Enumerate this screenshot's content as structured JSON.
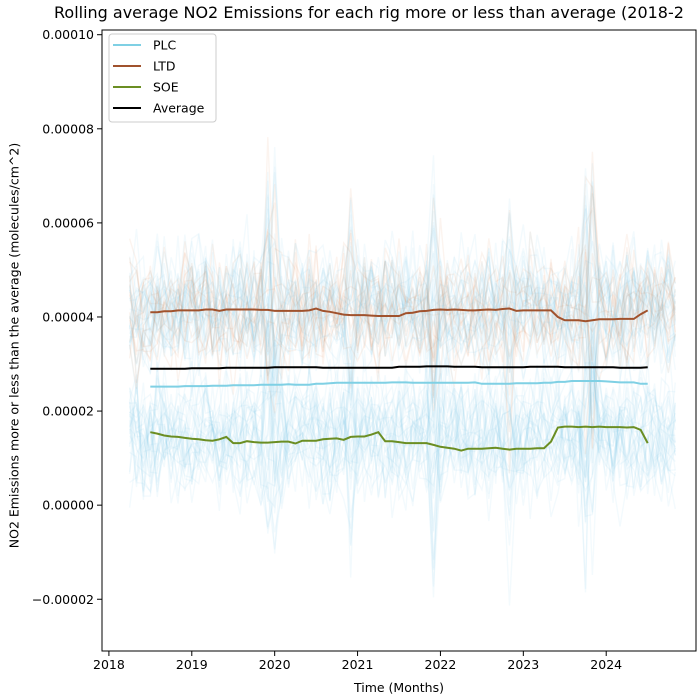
{
  "chart_data": {
    "type": "line",
    "title": "Rolling average NO2 Emissions for each rig more or less than average (2018-2",
    "xlabel": "Time (Months)",
    "ylabel": "NO2 Emissions more or less than the average (molecules/cm^2)",
    "xlim": [
      "2017-12",
      "2025-02"
    ],
    "ylim": [
      -3.1e-05,
      0.000101
    ],
    "x_ticks": [
      "2018",
      "2019",
      "2020",
      "2021",
      "2022",
      "2023",
      "2024"
    ],
    "y_ticks": [
      "−0.00002",
      "0.00000",
      "0.00002",
      "0.00004",
      "0.00006",
      "0.00008",
      "0.00010"
    ],
    "y_tick_values": [
      -2e-05,
      0,
      2e-05,
      4e-05,
      6e-05,
      8e-05,
      0.0001
    ],
    "grid": false,
    "legend_position": "top-left",
    "x": [
      "2018-07",
      "2018-08",
      "2018-09",
      "2018-10",
      "2018-11",
      "2018-12",
      "2019-01",
      "2019-02",
      "2019-03",
      "2019-04",
      "2019-05",
      "2019-06",
      "2019-07",
      "2019-08",
      "2019-09",
      "2019-10",
      "2019-11",
      "2019-12",
      "2020-01",
      "2020-02",
      "2020-03",
      "2020-04",
      "2020-05",
      "2020-06",
      "2020-07",
      "2020-08",
      "2020-09",
      "2020-10",
      "2020-11",
      "2020-12",
      "2021-01",
      "2021-02",
      "2021-03",
      "2021-04",
      "2021-05",
      "2021-06",
      "2021-07",
      "2021-08",
      "2021-09",
      "2021-10",
      "2021-11",
      "2021-12",
      "2022-01",
      "2022-02",
      "2022-03",
      "2022-04",
      "2022-05",
      "2022-06",
      "2022-07",
      "2022-08",
      "2022-09",
      "2022-10",
      "2022-11",
      "2022-12",
      "2023-01",
      "2023-02",
      "2023-03",
      "2023-04",
      "2023-05",
      "2023-06",
      "2023-07",
      "2023-08",
      "2023-09",
      "2023-10",
      "2023-11",
      "2023-12",
      "2024-01",
      "2024-02",
      "2024-03",
      "2024-04",
      "2024-05",
      "2024-06",
      "2024-07"
    ],
    "series": [
      {
        "name": "PLC",
        "color": "#7fd0e4",
        "values": [
          2.52e-05,
          2.52e-05,
          2.52e-05,
          2.52e-05,
          2.52e-05,
          2.53e-05,
          2.53e-05,
          2.53e-05,
          2.53e-05,
          2.54e-05,
          2.54e-05,
          2.54e-05,
          2.55e-05,
          2.55e-05,
          2.55e-05,
          2.55e-05,
          2.56e-05,
          2.56e-05,
          2.56e-05,
          2.56e-05,
          2.57e-05,
          2.56e-05,
          2.56e-05,
          2.56e-05,
          2.58e-05,
          2.58e-05,
          2.59e-05,
          2.6e-05,
          2.6e-05,
          2.6e-05,
          2.6e-05,
          2.6e-05,
          2.6e-05,
          2.6e-05,
          2.6e-05,
          2.61e-05,
          2.61e-05,
          2.61e-05,
          2.6e-05,
          2.6e-05,
          2.6e-05,
          2.6e-05,
          2.6e-05,
          2.6e-05,
          2.6e-05,
          2.6e-05,
          2.6e-05,
          2.61e-05,
          2.58e-05,
          2.58e-05,
          2.58e-05,
          2.58e-05,
          2.58e-05,
          2.59e-05,
          2.59e-05,
          2.59e-05,
          2.59e-05,
          2.6e-05,
          2.6e-05,
          2.62e-05,
          2.62e-05,
          2.64e-05,
          2.64e-05,
          2.64e-05,
          2.64e-05,
          2.64e-05,
          2.63e-05,
          2.62e-05,
          2.61e-05,
          2.61e-05,
          2.61e-05,
          2.58e-05,
          2.58e-05
        ]
      },
      {
        "name": "LTD",
        "color": "#a0522d",
        "values": [
          4.1e-05,
          4.1e-05,
          4.12e-05,
          4.12e-05,
          4.14e-05,
          4.14e-05,
          4.14e-05,
          4.14e-05,
          4.16e-05,
          4.16e-05,
          4.13e-05,
          4.16e-05,
          4.16e-05,
          4.16e-05,
          4.16e-05,
          4.16e-05,
          4.15e-05,
          4.15e-05,
          4.13e-05,
          4.13e-05,
          4.13e-05,
          4.13e-05,
          4.13e-05,
          4.14e-05,
          4.18e-05,
          4.13e-05,
          4.11e-05,
          4.08e-05,
          4.05e-05,
          4.04e-05,
          4.04e-05,
          4.04e-05,
          4.03e-05,
          4.02e-05,
          4.02e-05,
          4.02e-05,
          4.02e-05,
          4.08e-05,
          4.09e-05,
          4.12e-05,
          4.13e-05,
          4.15e-05,
          4.16e-05,
          4.15e-05,
          4.16e-05,
          4.15e-05,
          4.14e-05,
          4.14e-05,
          4.15e-05,
          4.16e-05,
          4.15e-05,
          4.17e-05,
          4.18e-05,
          4.13e-05,
          4.14e-05,
          4.14e-05,
          4.14e-05,
          4.14e-05,
          4.14e-05,
          4e-05,
          3.93e-05,
          3.93e-05,
          3.93e-05,
          3.91e-05,
          3.93e-05,
          3.95e-05,
          3.95e-05,
          3.95e-05,
          3.96e-05,
          3.96e-05,
          3.96e-05,
          4.06e-05,
          4.14e-05
        ]
      },
      {
        "name": "SOE",
        "color": "#6b8e23",
        "values": [
          1.55e-05,
          1.52e-05,
          1.48e-05,
          1.46e-05,
          1.45e-05,
          1.43e-05,
          1.41e-05,
          1.4e-05,
          1.38e-05,
          1.37e-05,
          1.4e-05,
          1.45e-05,
          1.32e-05,
          1.32e-05,
          1.36e-05,
          1.34e-05,
          1.33e-05,
          1.33e-05,
          1.34e-05,
          1.35e-05,
          1.35e-05,
          1.31e-05,
          1.37e-05,
          1.37e-05,
          1.37e-05,
          1.4e-05,
          1.41e-05,
          1.42e-05,
          1.39e-05,
          1.45e-05,
          1.46e-05,
          1.46e-05,
          1.5e-05,
          1.55e-05,
          1.36e-05,
          1.36e-05,
          1.34e-05,
          1.32e-05,
          1.32e-05,
          1.32e-05,
          1.32e-05,
          1.28e-05,
          1.24e-05,
          1.22e-05,
          1.2e-05,
          1.16e-05,
          1.2e-05,
          1.2e-05,
          1.2e-05,
          1.21e-05,
          1.22e-05,
          1.2e-05,
          1.18e-05,
          1.2e-05,
          1.2e-05,
          1.2e-05,
          1.21e-05,
          1.21e-05,
          1.35e-05,
          1.65e-05,
          1.67e-05,
          1.67e-05,
          1.66e-05,
          1.67e-05,
          1.66e-05,
          1.67e-05,
          1.66e-05,
          1.66e-05,
          1.66e-05,
          1.65e-05,
          1.66e-05,
          1.6e-05,
          1.32e-05
        ]
      },
      {
        "name": "Average",
        "color": "#000000",
        "values": [
          2.9e-05,
          2.9e-05,
          2.9e-05,
          2.9e-05,
          2.9e-05,
          2.9e-05,
          2.91e-05,
          2.91e-05,
          2.91e-05,
          2.91e-05,
          2.91e-05,
          2.92e-05,
          2.92e-05,
          2.92e-05,
          2.92e-05,
          2.92e-05,
          2.92e-05,
          2.92e-05,
          2.93e-05,
          2.93e-05,
          2.93e-05,
          2.93e-05,
          2.93e-05,
          2.93e-05,
          2.93e-05,
          2.92e-05,
          2.92e-05,
          2.92e-05,
          2.92e-05,
          2.92e-05,
          2.92e-05,
          2.92e-05,
          2.92e-05,
          2.92e-05,
          2.92e-05,
          2.92e-05,
          2.94e-05,
          2.94e-05,
          2.94e-05,
          2.94e-05,
          2.95e-05,
          2.95e-05,
          2.95e-05,
          2.95e-05,
          2.94e-05,
          2.94e-05,
          2.94e-05,
          2.94e-05,
          2.93e-05,
          2.93e-05,
          2.93e-05,
          2.93e-05,
          2.93e-05,
          2.93e-05,
          2.93e-05,
          2.94e-05,
          2.94e-05,
          2.94e-05,
          2.94e-05,
          2.94e-05,
          2.93e-05,
          2.93e-05,
          2.93e-05,
          2.93e-05,
          2.93e-05,
          2.93e-05,
          2.93e-05,
          2.93e-05,
          2.92e-05,
          2.92e-05,
          2.92e-05,
          2.92e-05,
          2.93e-05
        ]
      }
    ],
    "background_rigs": {
      "x_range": [
        "2018-04",
        "2024-11"
      ],
      "count": 70,
      "plc_color": "#87ceeb",
      "ltd_color": "#d2691e"
    }
  }
}
